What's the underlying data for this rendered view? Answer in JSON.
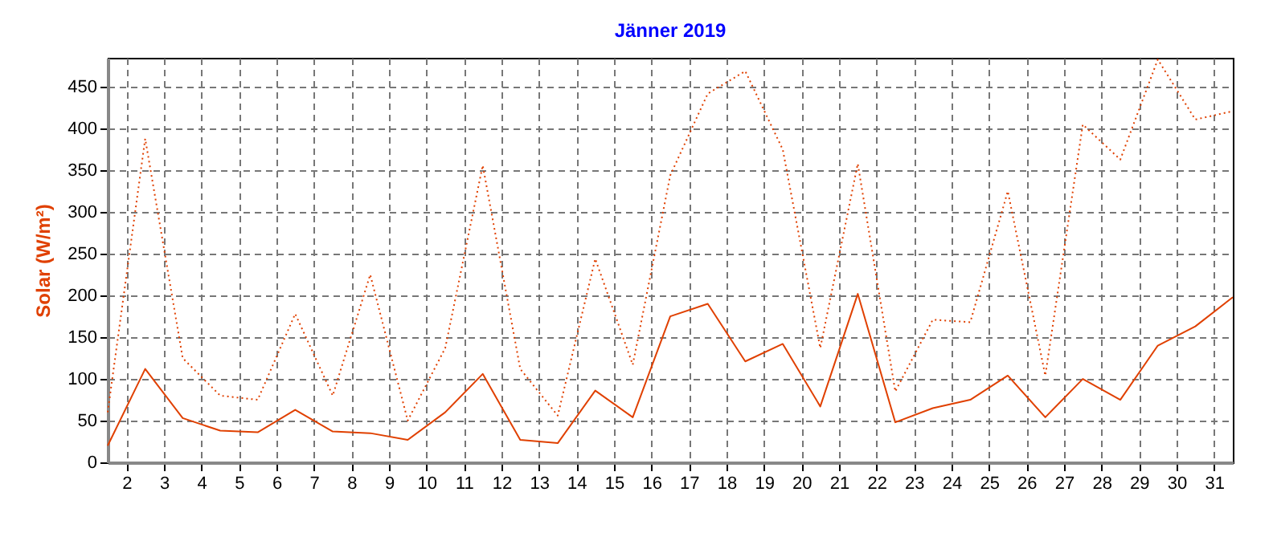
{
  "chart_data": {
    "type": "line",
    "title": "Jänner 2019",
    "ylabel": "Solar (W/m²)",
    "x": [
      1.5,
      2.5,
      3.5,
      4.5,
      5.5,
      6.5,
      7.5,
      8.5,
      9.5,
      10.5,
      11.5,
      12.5,
      13.5,
      14.5,
      15.5,
      16.5,
      17.5,
      18.5,
      19.5,
      20.5,
      21.5,
      22.5,
      23.5,
      24.5,
      25.5,
      26.5,
      27.5,
      28.5,
      29.5,
      30.5,
      31.5
    ],
    "series": [
      {
        "color": "#e04000",
        "line_style": "solid",
        "values": [
          20,
          112,
          53,
          38,
          36,
          63,
          37,
          35,
          27,
          60,
          106,
          27,
          23,
          86,
          54,
          175,
          190,
          121,
          142,
          67,
          202,
          48,
          65,
          75,
          104,
          54,
          100,
          75,
          140,
          163,
          198
        ]
      },
      {
        "color": "#e04000",
        "line_style": "dotted",
        "values": [
          60,
          388,
          125,
          80,
          75,
          178,
          80,
          225,
          50,
          137,
          356,
          112,
          56,
          244,
          117,
          344,
          442,
          469,
          375,
          137,
          358,
          85,
          171,
          168,
          325,
          104,
          405,
          363,
          483,
          411,
          421
        ]
      }
    ],
    "xlim": [
      1.5,
      31.5
    ],
    "xticks": [
      2,
      3,
      4,
      5,
      6,
      7,
      8,
      9,
      10,
      11,
      12,
      13,
      14,
      15,
      16,
      17,
      18,
      19,
      20,
      21,
      22,
      23,
      24,
      25,
      26,
      27,
      28,
      29,
      30,
      31
    ],
    "ylim": [
      0,
      485
    ],
    "yticks": [
      0,
      50,
      100,
      150,
      200,
      250,
      300,
      350,
      400,
      450
    ],
    "grid": true
  }
}
